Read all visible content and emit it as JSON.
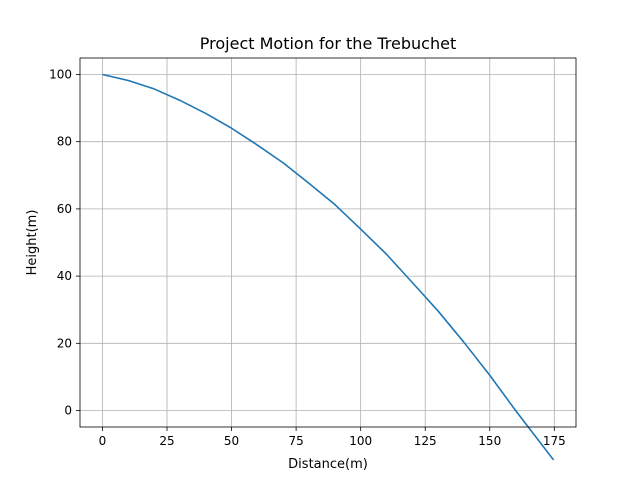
{
  "chart_data": {
    "type": "line",
    "title": "Project Motion for the Trebuchet",
    "xlabel": "Distance(m)",
    "ylabel": "Height(m)",
    "xlim": [
      -8.7,
      183.4
    ],
    "ylim": [
      -4.9,
      104.9
    ],
    "x_ticks": [
      0,
      25,
      50,
      75,
      100,
      125,
      150,
      175
    ],
    "y_ticks": [
      0,
      20,
      40,
      60,
      80,
      100
    ],
    "grid": true,
    "series": [
      {
        "color": "#1f77b4",
        "x": [
          0,
          10,
          20,
          30,
          40,
          50,
          60,
          70,
          80,
          90,
          100,
          110,
          120,
          130,
          140,
          150,
          160,
          170,
          174.7
        ],
        "y": [
          100,
          98.2,
          95.7,
          92.3,
          88.4,
          84.0,
          79.0,
          73.7,
          67.6,
          61.3,
          54.0,
          46.5,
          38.1,
          29.6,
          20.3,
          10.5,
          0.0,
          -10.0,
          -14.7
        ]
      }
    ]
  }
}
